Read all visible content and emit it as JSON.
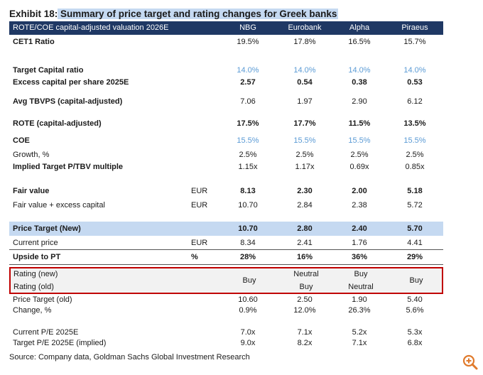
{
  "title": {
    "prefix": "Exhibit 18:",
    "text": " Summary of price target and rating changes for Greek banks"
  },
  "header": {
    "label": "ROTE/COE capital-adjusted valuation 2026E",
    "banks": [
      "NBG",
      "Eurobank",
      "Alpha",
      "Piraeus"
    ]
  },
  "rows": {
    "cet1": {
      "label": "CET1 Ratio",
      "unit": "",
      "values": [
        "19.5%",
        "17.8%",
        "16.5%",
        "15.7%"
      ]
    },
    "target_capital": {
      "label": "Target Capital ratio",
      "unit": "",
      "values": [
        "14.0%",
        "14.0%",
        "14.0%",
        "14.0%"
      ]
    },
    "excess_capital": {
      "label": "Excess capital per share 2025E",
      "unit": "",
      "values": [
        "2.57",
        "0.54",
        "0.38",
        "0.53"
      ]
    },
    "avg_tbvps": {
      "label": "Avg TBVPS (capital-adjusted)",
      "unit": "",
      "values": [
        "7.06",
        "1.97",
        "2.90",
        "6.12"
      ]
    },
    "rote": {
      "label": "ROTE (capital-adjusted)",
      "unit": "",
      "values": [
        "17.5%",
        "17.7%",
        "11.5%",
        "13.5%"
      ]
    },
    "coe": {
      "label": "COE",
      "unit": "",
      "values": [
        "15.5%",
        "15.5%",
        "15.5%",
        "15.5%"
      ]
    },
    "growth": {
      "label": "Growth, %",
      "unit": "",
      "values": [
        "2.5%",
        "2.5%",
        "2.5%",
        "2.5%"
      ]
    },
    "implied_pt": {
      "label": "Implied Target P/TBV multiple",
      "unit": "",
      "values": [
        "1.15x",
        "1.17x",
        "0.69x",
        "0.85x"
      ]
    },
    "fair_value": {
      "label": "Fair value",
      "unit": "EUR",
      "values": [
        "8.13",
        "2.30",
        "2.00",
        "5.18"
      ]
    },
    "fv_excess": {
      "label": "Fair value + excess capital",
      "unit": "EUR",
      "values": [
        "10.70",
        "2.84",
        "2.38",
        "5.72"
      ]
    },
    "price_target": {
      "label": "Price Target (New)",
      "unit": "",
      "values": [
        "10.70",
        "2.80",
        "2.40",
        "5.70"
      ]
    },
    "current_price": {
      "label": "Current price",
      "unit": "EUR",
      "values": [
        "8.34",
        "2.41",
        "1.76",
        "4.41"
      ]
    },
    "upside": {
      "label": "Upside to PT",
      "unit": "%",
      "values": [
        "28%",
        "16%",
        "36%",
        "29%"
      ]
    },
    "pt_old": {
      "label": "Price Target (old)",
      "unit": "",
      "values": [
        "10.60",
        "2.50",
        "1.90",
        "5.40"
      ]
    },
    "change": {
      "label": "Change, %",
      "unit": "",
      "values": [
        "0.9%",
        "12.0%",
        "26.3%",
        "5.6%"
      ]
    },
    "current_pe": {
      "label": "Current P/E 2025E",
      "unit": "",
      "values": [
        "7.0x",
        "7.1x",
        "5.2x",
        "5.3x"
      ]
    },
    "target_pe": {
      "label": "Target P/E 2025E (implied)",
      "unit": "",
      "values": [
        "9.0x",
        "8.2x",
        "7.1x",
        "6.8x"
      ]
    }
  },
  "rating": {
    "new_label": "Rating (new)",
    "old_label": "Rating (old)",
    "nbg": "Buy",
    "eurobank_new": "Neutral",
    "eurobank_old": "Buy",
    "alpha_new": "Buy",
    "alpha_old": "Neutral",
    "piraeus": "Buy"
  },
  "source": "Source: Company data, Goldman Sachs Global Investment Research",
  "icons": {
    "zoom": "zoom-in-icon"
  },
  "colors": {
    "header_bg": "#1f3864",
    "band_bg": "#c5d9f1",
    "blue_text": "#5b9bd5",
    "rating_border": "#c00000"
  }
}
